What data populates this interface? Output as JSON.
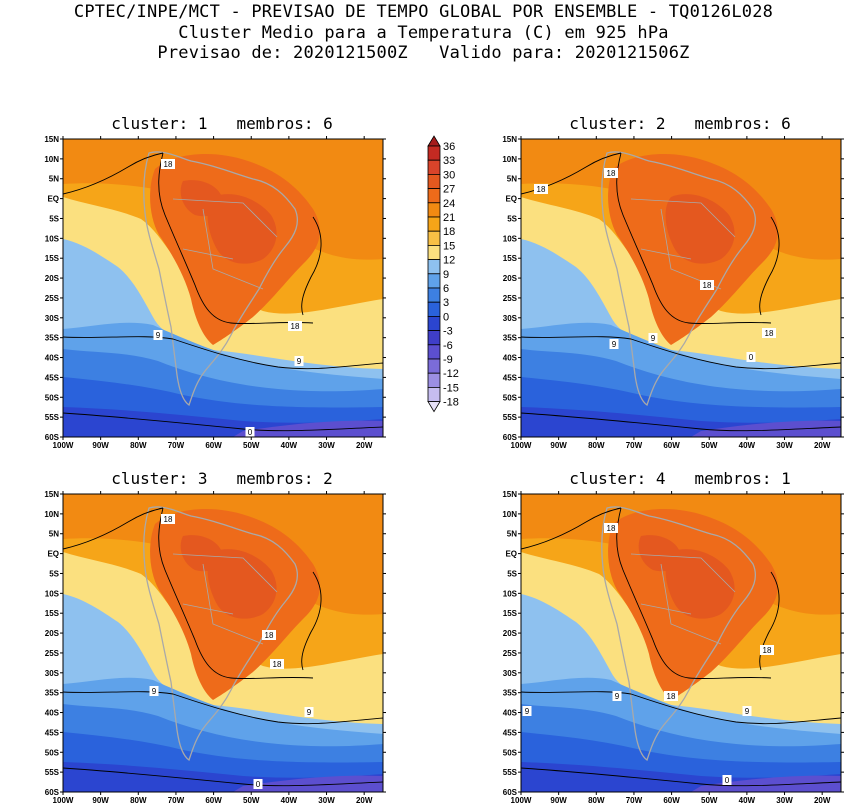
{
  "header": {
    "line1": "CPTEC/INPE/MCT - PREVISAO DE TEMPO GLOBAL POR ENSEMBLE - TQ0126L028",
    "line2": "Cluster Medio para a Temperatura (C) em 925 hPa",
    "line3": "Previsao de: 2020121500Z   Valido para: 2020121506Z"
  },
  "panels": [
    {
      "title": "cluster: 1   membros: 6",
      "contour_labels": [
        "18",
        "18",
        "9",
        "9",
        "0"
      ]
    },
    {
      "title": "cluster: 2   membros: 6",
      "contour_labels": [
        "18",
        "18",
        "18",
        "18",
        "9",
        "9",
        "0"
      ]
    },
    {
      "title": "cluster: 3   membros: 2",
      "contour_labels": [
        "18",
        "18",
        "18",
        "9",
        "9",
        "0"
      ]
    },
    {
      "title": "cluster: 4   membros: 1",
      "contour_labels": [
        "18",
        "18",
        "18",
        "9",
        "9",
        "9",
        "0"
      ]
    }
  ],
  "axes": {
    "lat_labels": [
      "15N",
      "10N",
      "5N",
      "EQ",
      "5S",
      "10S",
      "15S",
      "20S",
      "25S",
      "30S",
      "35S",
      "40S",
      "45S",
      "50S",
      "55S",
      "60S"
    ],
    "lon_labels": [
      "100W",
      "90W",
      "80W",
      "70W",
      "60W",
      "50W",
      "40W",
      "30W",
      "20W"
    ]
  },
  "colorbar": {
    "labels": [
      "36",
      "33",
      "30",
      "27",
      "24",
      "21",
      "18",
      "15",
      "12",
      "9",
      "6",
      "3",
      "0",
      "-3",
      "-6",
      "-9",
      "-12",
      "-15",
      "-18"
    ],
    "colors": [
      "#a51c1c",
      "#c42a22",
      "#d9442a",
      "#e4581f",
      "#ee6b1a",
      "#f28a12",
      "#f6a518",
      "#f8c045",
      "#fbe07f",
      "#8ec1ef",
      "#5fa2ea",
      "#3d80e2",
      "#2a62dc",
      "#2b45d0",
      "#3f3ec8",
      "#5c4fcf",
      "#7b6cd9",
      "#9c8fe3",
      "#c6bdf0",
      "#e6e0f8"
    ]
  },
  "map_colors": {
    "ocean_warm": "#f6a518",
    "tropical": "#f28a12",
    "continent_hot": "#ee6b1a",
    "hot_core": "#e4581f",
    "mild": "#fbe07f",
    "cool": "#8ec1ef",
    "cold1": "#5fa2ea",
    "cold2": "#3d80e2",
    "cold3": "#2a62dc",
    "very_cold": "#2b45d0",
    "polar": "#5c4fcf",
    "land_line": "#a9a9a9",
    "contour": "#000000"
  }
}
